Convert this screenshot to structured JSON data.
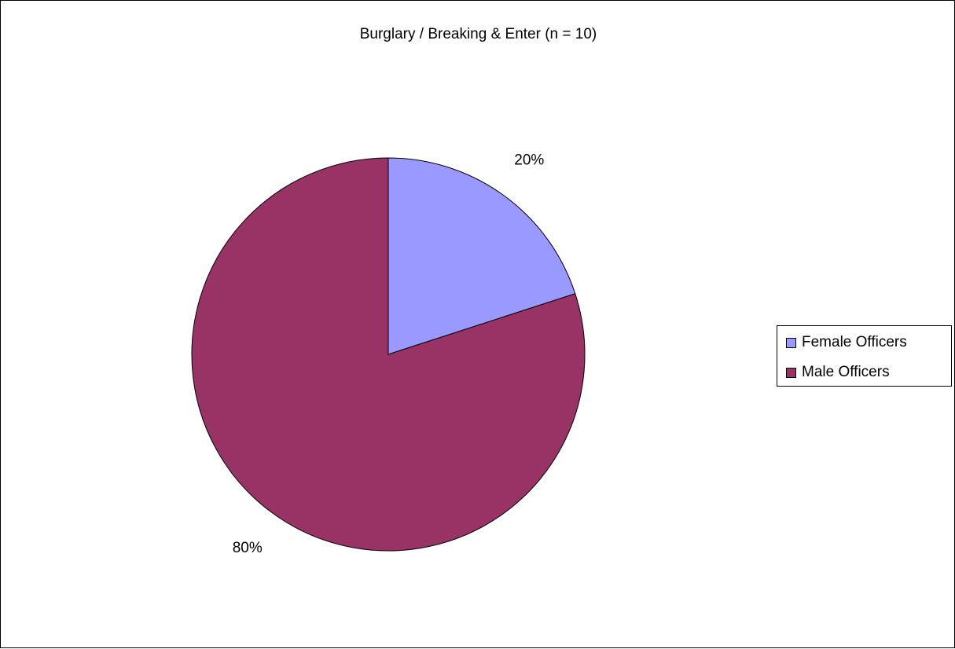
{
  "chart_data": {
    "type": "pie",
    "title": "Burglary / Breaking & Enter (n = 10)",
    "slices": [
      {
        "name": "Female Officers",
        "value": 20,
        "label": "20%",
        "color": "#9999FF"
      },
      {
        "name": "Male Officers",
        "value": 80,
        "label": "80%",
        "color": "#993366"
      }
    ],
    "legend": {
      "placement": "right"
    },
    "start_angle": "12 o'clock",
    "direction": "clockwise"
  }
}
